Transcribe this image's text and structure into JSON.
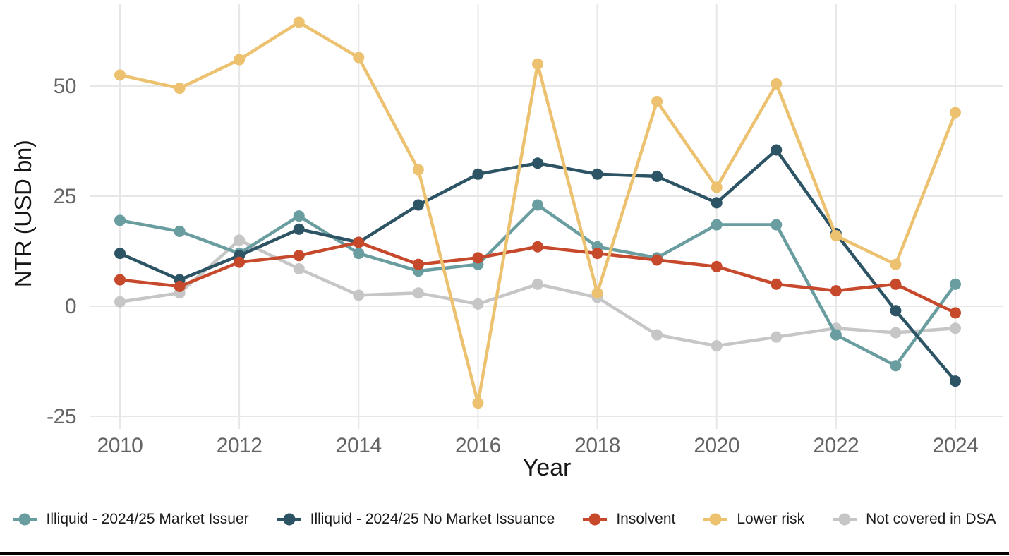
{
  "chart_data": {
    "type": "line",
    "title": "",
    "xlabel": "Year",
    "ylabel": "NTR (USD bn)",
    "x": [
      2010,
      2011,
      2012,
      2013,
      2014,
      2015,
      2016,
      2017,
      2018,
      2019,
      2020,
      2021,
      2022,
      2023,
      2024
    ],
    "x_ticks": [
      2010,
      2012,
      2014,
      2016,
      2018,
      2020,
      2022,
      2024
    ],
    "y_ticks": [
      -25,
      0,
      25,
      50
    ],
    "ylim": [
      -25,
      66
    ],
    "grid": true,
    "legend_position": "bottom",
    "marker": "circle",
    "series": [
      {
        "name": "Illiquid - 2024/25 Market Issuer",
        "color": "#699da0",
        "values": [
          19.5,
          17,
          12,
          20.5,
          12,
          8,
          9.5,
          23,
          13.5,
          11,
          18.5,
          18.5,
          -6.5,
          -13.5,
          5
        ]
      },
      {
        "name": "Illiquid - 2024/25 No Market Issuance",
        "color": "#2d5465",
        "values": [
          12,
          6,
          11.5,
          17.5,
          14.5,
          23,
          30,
          32.5,
          30,
          29.5,
          23.5,
          35.5,
          16.5,
          -1,
          -17
        ]
      },
      {
        "name": "Insolvent",
        "color": "#c7492c",
        "values": [
          6,
          4.5,
          10,
          11.5,
          14.5,
          9.5,
          11,
          13.5,
          12,
          10.5,
          9,
          5,
          3.5,
          5,
          -1.5
        ]
      },
      {
        "name": "Lower risk",
        "color": "#ecc271",
        "values": [
          52.5,
          49.5,
          56,
          64.5,
          56.5,
          31,
          -22,
          55,
          3,
          46.5,
          27,
          50.5,
          16,
          9.5,
          44
        ]
      },
      {
        "name": "Not covered in DSA",
        "color": "#c6c6c6",
        "values": [
          1,
          3,
          15,
          8.5,
          2.5,
          3,
          0.5,
          5,
          2,
          -6.5,
          -9,
          -7,
          -5,
          -6,
          -5
        ]
      }
    ],
    "grid_color": "#e7e7e7"
  }
}
